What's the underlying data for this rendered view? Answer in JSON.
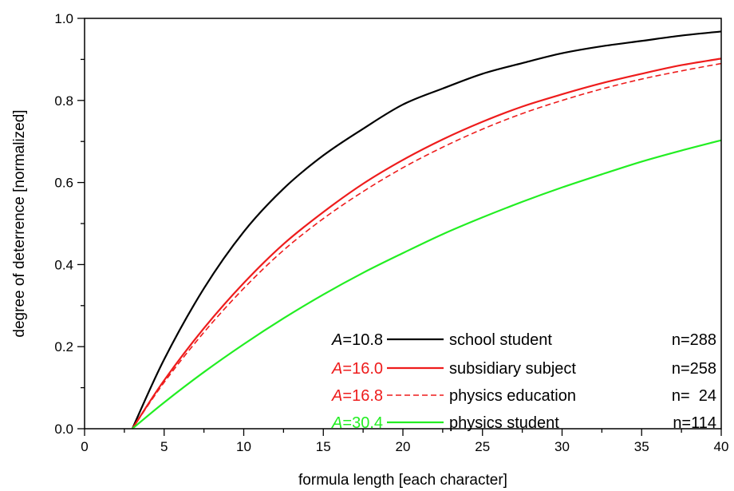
{
  "chart_data": {
    "type": "line",
    "title": "",
    "xlabel": "formula length [each character]",
    "ylabel": "degree of deterrence [normalized]",
    "xlim": [
      0,
      40
    ],
    "ylim": [
      0,
      1.0
    ],
    "x_ticks": [
      "0",
      "5",
      "10",
      "15",
      "20",
      "25",
      "30",
      "35",
      "40"
    ],
    "y_ticks": [
      "0.0",
      "0.2",
      "0.4",
      "0.6",
      "0.8",
      "1.0"
    ],
    "grid": false,
    "legend_position": "bottom-right",
    "series": [
      {
        "name": "school student",
        "a_label": "A=10.8",
        "n_label": "n=288",
        "color": "#000000",
        "dash": "solid",
        "x": [
          3,
          5,
          7.5,
          10,
          12.5,
          15,
          17.5,
          20,
          22.5,
          25,
          27.5,
          30,
          32.5,
          35,
          37.5,
          40
        ],
        "y": [
          0.0,
          0.169,
          0.342,
          0.48,
          0.585,
          0.666,
          0.731,
          0.79,
          0.829,
          0.865,
          0.891,
          0.915,
          0.932,
          0.945,
          0.958,
          0.968
        ]
      },
      {
        "name": "subsidiary subject",
        "a_label": "A=16.0",
        "n_label": "n=258",
        "color": "#ee1c1c",
        "dash": "solid",
        "x": [
          3,
          5,
          7.5,
          10,
          12.5,
          15,
          17.5,
          20,
          22.5,
          25,
          27.5,
          30,
          32.5,
          35,
          37.5,
          40
        ],
        "y": [
          0.0,
          0.118,
          0.245,
          0.355,
          0.45,
          0.528,
          0.597,
          0.655,
          0.705,
          0.748,
          0.785,
          0.815,
          0.842,
          0.865,
          0.886,
          0.902
        ]
      },
      {
        "name": "physics education",
        "a_label": "A=16.8",
        "n_label": "n=  24",
        "color": "#ee1c1c",
        "dash": "dashed",
        "x": [
          3,
          5,
          7.5,
          10,
          12.5,
          15,
          17.5,
          20,
          22.5,
          25,
          27.5,
          30,
          32.5,
          35,
          37.5,
          40
        ],
        "y": [
          0.0,
          0.113,
          0.235,
          0.342,
          0.435,
          0.512,
          0.578,
          0.636,
          0.686,
          0.73,
          0.768,
          0.8,
          0.828,
          0.852,
          0.872,
          0.89
        ]
      },
      {
        "name": "physics student",
        "a_label": "A=30.4",
        "n_label": "n=114",
        "color": "#22ee22",
        "dash": "solid",
        "x": [
          3,
          5,
          7.5,
          10,
          12.5,
          15,
          17.5,
          20,
          22.5,
          25,
          27.5,
          30,
          32.5,
          35,
          37.5,
          40
        ],
        "y": [
          0.0,
          0.064,
          0.138,
          0.206,
          0.269,
          0.327,
          0.38,
          0.428,
          0.474,
          0.515,
          0.553,
          0.588,
          0.62,
          0.651,
          0.678,
          0.703
        ]
      }
    ]
  }
}
